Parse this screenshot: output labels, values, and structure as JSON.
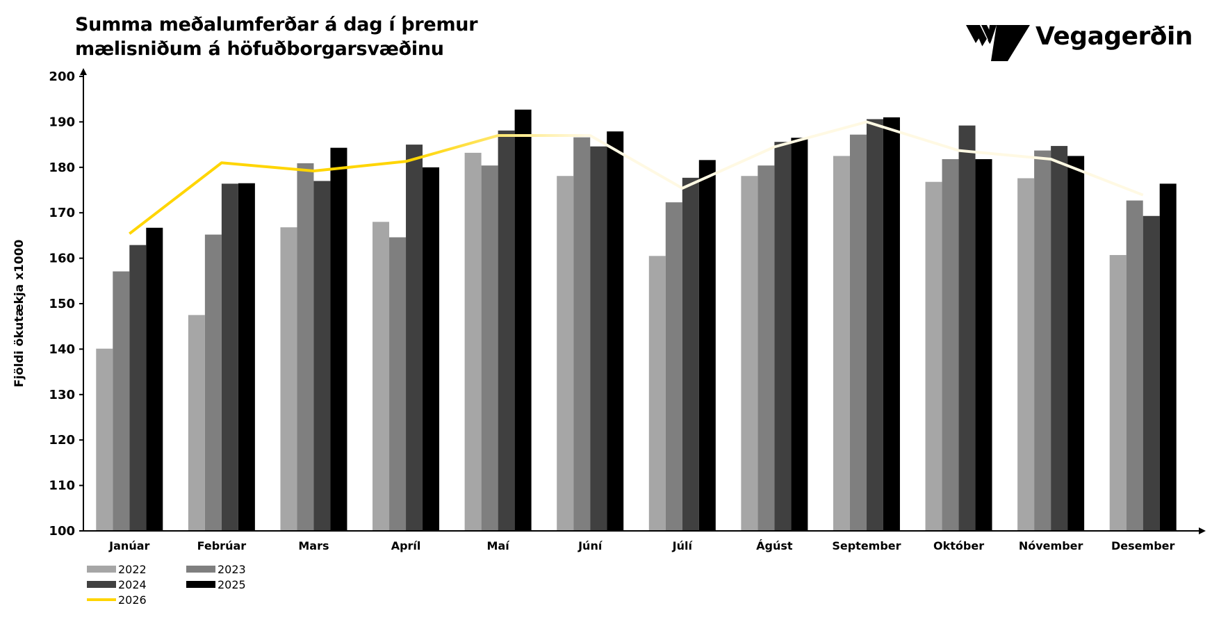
{
  "title_line1": "Summa meðalumferðar á dag í þremur",
  "title_line2": "mælisniðum á höfuðborgarsvæðinu",
  "logo_text": "Vegagerðin",
  "chart_data": {
    "type": "bar",
    "title": "Summa meðalumferðar á dag í þremur mælisniðum á höfuðborgarsvæðinu",
    "ylabel": "Fjöldi ökutækja x1000",
    "xlabel": "",
    "ylim": [
      100,
      200
    ],
    "yticks": [
      100,
      110,
      120,
      130,
      140,
      150,
      160,
      170,
      180,
      190,
      200
    ],
    "grid": false,
    "legend_position": "bottom-left",
    "categories": [
      "Janúar",
      "Febrúar",
      "Mars",
      "Apríl",
      "Maí",
      "Júní",
      "Júlí",
      "Ágúst",
      "September",
      "Október",
      "Nóvember",
      "Desember"
    ],
    "series": [
      {
        "name": "2022",
        "type": "bar",
        "color": "#a6a6a6",
        "values": [
          140.1,
          147.5,
          166.8,
          168.0,
          183.2,
          178.1,
          160.5,
          178.1,
          182.5,
          176.8,
          177.6,
          160.7
        ]
      },
      {
        "name": "2023",
        "type": "bar",
        "color": "#7f7f7f",
        "values": [
          157.1,
          165.2,
          180.9,
          164.6,
          180.4,
          186.6,
          172.3,
          180.4,
          187.2,
          181.8,
          183.7,
          172.7
        ]
      },
      {
        "name": "2024",
        "type": "bar",
        "color": "#404040",
        "values": [
          162.9,
          176.4,
          177.0,
          185.0,
          188.1,
          184.6,
          177.7,
          185.6,
          190.6,
          189.2,
          184.7,
          169.3
        ]
      },
      {
        "name": "2025",
        "type": "bar",
        "color": "#000000",
        "values": [
          166.7,
          176.5,
          184.3,
          180.0,
          192.7,
          187.9,
          181.6,
          186.5,
          191.0,
          181.8,
          182.5,
          176.4
        ]
      },
      {
        "name": "2026",
        "type": "line",
        "color": "#ffd500",
        "color_end": "#fff9e3",
        "values": [
          165.4,
          181.0,
          179.2,
          181.3,
          187.0,
          187.0,
          175.4,
          184.5,
          190.0,
          183.7,
          181.8,
          173.9
        ]
      }
    ]
  }
}
